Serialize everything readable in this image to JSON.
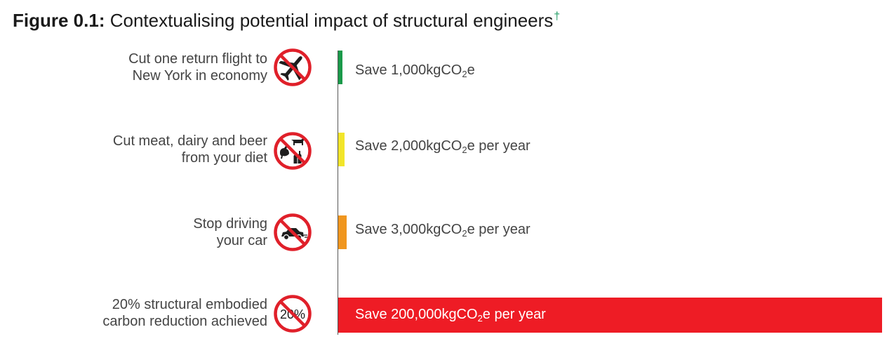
{
  "title": {
    "prefix": "Figure 0.1:",
    "text": "Contextualising potential impact of structural engineers",
    "mark": "†"
  },
  "chart_data": {
    "type": "bar",
    "orientation": "horizontal",
    "categories": [
      "Cut one return flight to New York in economy",
      "Cut meat, dairy and beer from your diet",
      "Stop driving your car",
      "20% structural embodied carbon reduction achieved"
    ],
    "values": [
      1000,
      2000,
      3000,
      200000
    ],
    "unit": "kgCO2e",
    "xlim": [
      0,
      200000
    ],
    "grid": false,
    "legend": "none",
    "colors": [
      "#1a9a4a",
      "#f2e52a",
      "#f0961e",
      "#ee1c25"
    ],
    "rows": [
      {
        "label_lines": [
          "Cut one return flight to",
          "New York in economy"
        ],
        "value_pre": "Save 1,000kgCO",
        "value_sub": "2",
        "value_post": "e",
        "icon": "no-flight-icon"
      },
      {
        "label_lines": [
          "Cut meat, dairy and beer",
          "from your diet"
        ],
        "value_pre": "Save 2,000kgCO",
        "value_sub": "2",
        "value_post": "e per year",
        "icon": "no-food-icon"
      },
      {
        "label_lines": [
          "Stop driving",
          "your car"
        ],
        "value_pre": "Save 3,000kgCO",
        "value_sub": "2",
        "value_post": "e per year",
        "icon": "no-car-icon"
      },
      {
        "label_lines": [
          "20% structural embodied",
          "carbon reduction achieved"
        ],
        "value_pre": "Save 200,000kgCO",
        "value_sub": "2",
        "value_post": "e per year",
        "icon": "twenty-percent-icon",
        "icon_text": "20%"
      }
    ]
  }
}
